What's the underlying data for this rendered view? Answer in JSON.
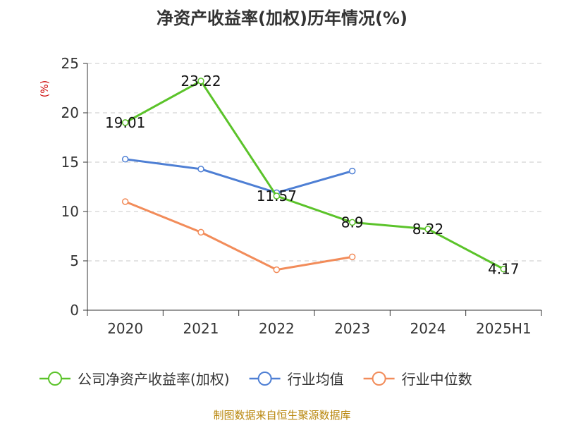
{
  "chart_data": {
    "type": "line",
    "title": "净资产收益率(加权)历年情况(%)",
    "ylabel": "(%)",
    "xlabel": "",
    "categories": [
      "2020",
      "2021",
      "2022",
      "2023",
      "2024",
      "2025H1"
    ],
    "ylim": [
      0,
      25
    ],
    "yticks": [
      0,
      5,
      10,
      15,
      20,
      25
    ],
    "grid": true,
    "legend_position": "bottom",
    "series": [
      {
        "name": "公司净资产收益率(加权)",
        "color": "#5bc32a",
        "values": [
          19.01,
          23.22,
          11.57,
          8.9,
          8.22,
          4.17
        ],
        "labels": [
          "19.01",
          "23.22",
          "11.57",
          "8.9",
          "8.22",
          "4.17"
        ]
      },
      {
        "name": "行业均值",
        "color": "#4e7fd4",
        "values": [
          15.3,
          14.3,
          11.9,
          14.1,
          null,
          null
        ]
      },
      {
        "name": "行业中位数",
        "color": "#f28c5a",
        "values": [
          11.0,
          7.9,
          4.1,
          5.4,
          null,
          null
        ]
      }
    ],
    "source": "制图数据来自恒生聚源数据库"
  }
}
